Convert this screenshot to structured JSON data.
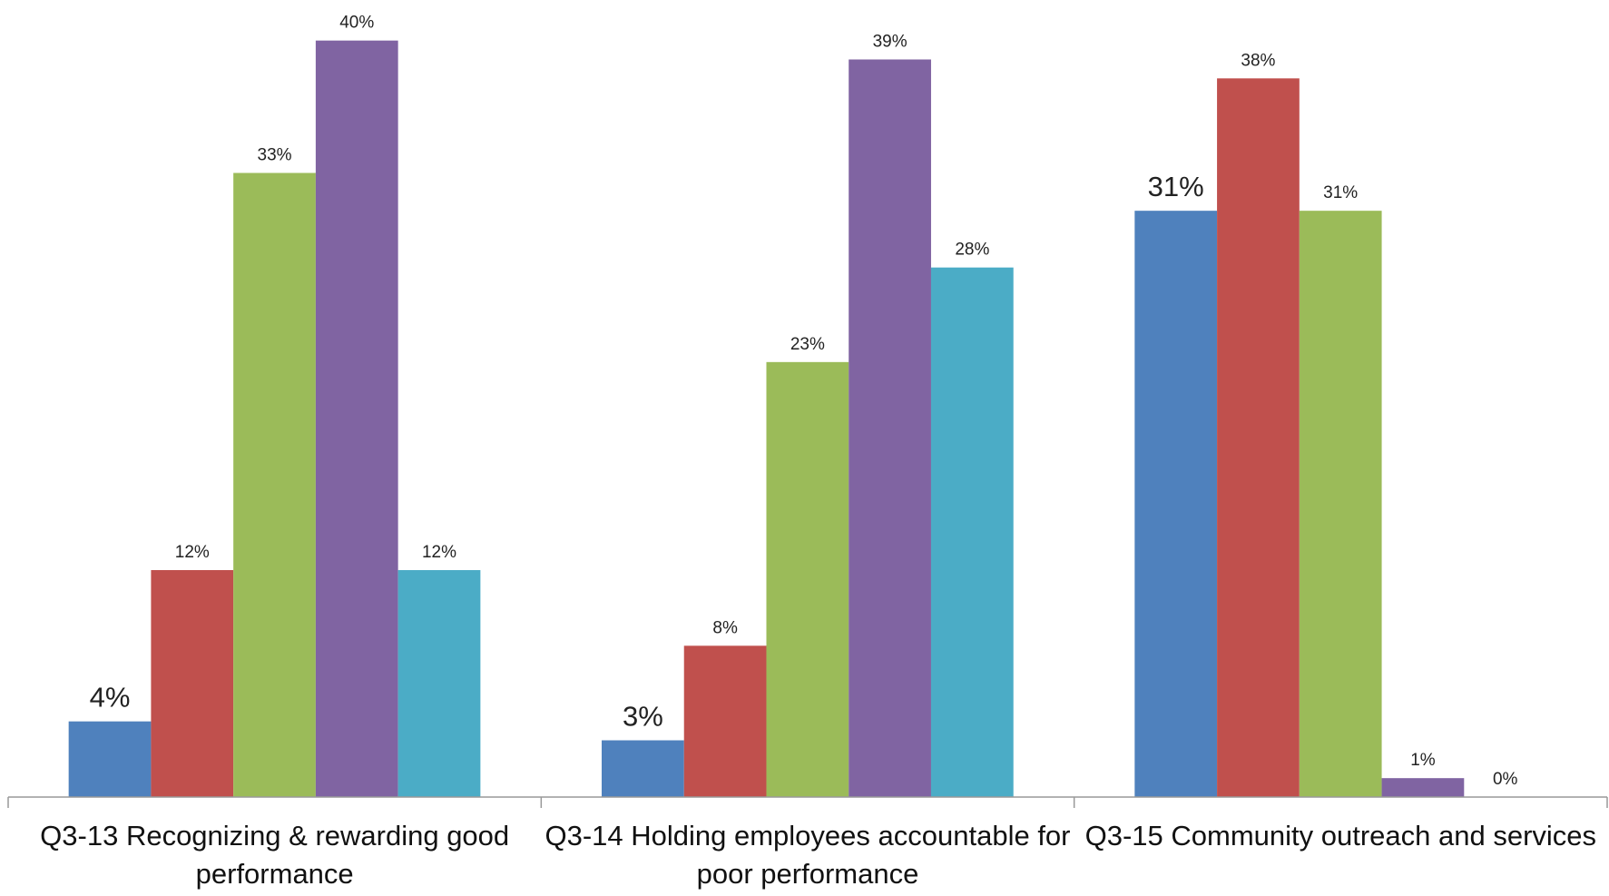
{
  "chart_data": {
    "type": "bar",
    "categories": [
      "Q3-13 Recognizing & rewarding good performance",
      "Q3-14 Holding employees accountable for poor performance",
      "Q3-15 Community outreach and services"
    ],
    "series": [
      {
        "color": "#4f81bd",
        "values": [
          4,
          3,
          31
        ],
        "value_labels": [
          "4%",
          "3%",
          "31%"
        ]
      },
      {
        "color": "#c0504d",
        "values": [
          12,
          8,
          38
        ],
        "value_labels": [
          "12%",
          "8%",
          "38%"
        ]
      },
      {
        "color": "#9bbb59",
        "values": [
          33,
          23,
          31
        ],
        "value_labels": [
          "33%",
          "23%",
          "31%"
        ]
      },
      {
        "color": "#8064a2",
        "values": [
          40,
          39,
          1
        ],
        "value_labels": [
          "40%",
          "39%",
          "1%"
        ]
      },
      {
        "color": "#4bacc6",
        "values": [
          12,
          28,
          0
        ],
        "value_labels": [
          "12%",
          "28%",
          "0%"
        ]
      }
    ],
    "ylim": [
      0,
      42
    ]
  }
}
